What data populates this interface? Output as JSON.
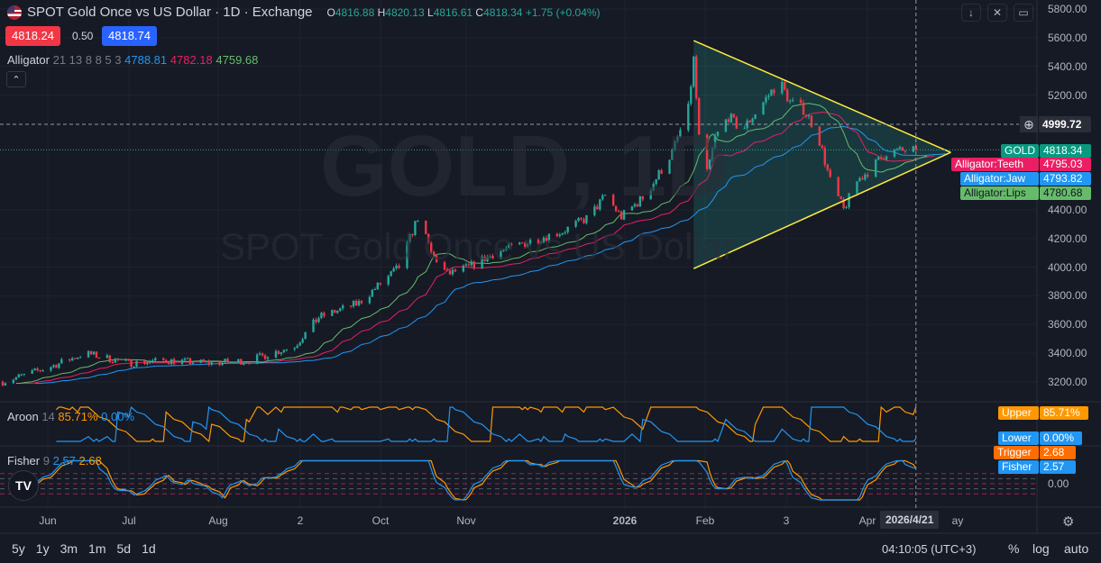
{
  "header": {
    "title": "SPOT Gold Once vs US Dollar · 1D · Exchange",
    "o_label": "O",
    "o": "4816.88",
    "h_label": "H",
    "h": "4820.13",
    "l_label": "L",
    "l": "4816.61",
    "c_label": "C",
    "c": "4818.34",
    "change": "+1.75 (+0.04%)"
  },
  "quote": {
    "bid": "4818.24",
    "spread": "0.50",
    "ask": "4818.74"
  },
  "alligator": {
    "name": "Alligator",
    "params": "21 13 8 8 5 3",
    "jaw": "4788.81",
    "teeth": "4782.18",
    "lips": "4759.68"
  },
  "aroon": {
    "name": "Aroon",
    "params": "14",
    "upper": "85.71%",
    "lower": "0.00%",
    "upper_label": "Upper",
    "lower_label": "Lower"
  },
  "fisher": {
    "name": "Fisher",
    "params": "9",
    "fisher": "2.57",
    "trigger": "2.68",
    "fisher_label": "Fisher",
    "trigger_label": "Trigger",
    "zero": "0.00"
  },
  "watermark": {
    "symbol": "GOLD, 1D",
    "desc": "SPOT Gold Once vs US Dollar"
  },
  "price_tags": {
    "crosshair": "4999.72",
    "gold_label": "GOLD",
    "gold": "4818.34",
    "teeth_label": "Alligator:Teeth",
    "teeth": "4795.03",
    "jaw_label": "Alligator:Jaw",
    "jaw": "4793.82",
    "lips_label": "Alligator:Lips",
    "lips": "4780.68"
  },
  "colors": {
    "up": "#26a69a",
    "down": "#f23645",
    "jaw": "#2196f3",
    "teeth": "#e91e63",
    "lips": "#66bb6a",
    "aroon_up": "#ff9800",
    "aroon_down": "#2196f3",
    "triangle": "#ffeb3b"
  },
  "time_axis": {
    "crosshair_date": "2026/4/21",
    "labels": [
      "Jun",
      "Jul",
      "Aug",
      "2",
      "Oct",
      "Nov",
      "2026",
      "Feb",
      "3",
      "Apr",
      "ay"
    ]
  },
  "bottom": {
    "ranges": [
      "5y",
      "1y",
      "3m",
      "1m",
      "5d",
      "1d"
    ],
    "clock": "04:10:05 (UTC+3)",
    "percent": "%",
    "log": "log",
    "auto": "auto"
  },
  "chart_data": {
    "type": "candlestick",
    "y_ticks": [
      "5800.00",
      "5600.00",
      "5400.00",
      "5200.00",
      "4400.00",
      "4200.00",
      "4000.00",
      "3800.00",
      "3600.00",
      "3400.00",
      "3200.00"
    ],
    "ylim": [
      3200,
      5800
    ],
    "close_keypoints": [
      [
        "2025-05-15",
        3200
      ],
      [
        "2025-06-01",
        3300
      ],
      [
        "2025-06-15",
        3400
      ],
      [
        "2025-07-01",
        3330
      ],
      [
        "2025-07-15",
        3350
      ],
      [
        "2025-08-01",
        3330
      ],
      [
        "2025-08-15",
        3350
      ],
      [
        "2025-09-01",
        3450
      ],
      [
        "2025-09-10",
        3650
      ],
      [
        "2025-09-25",
        3750
      ],
      [
        "2025-10-01",
        3850
      ],
      [
        "2025-10-10",
        4000
      ],
      [
        "2025-10-17",
        4350
      ],
      [
        "2025-10-22",
        4100
      ],
      [
        "2025-10-28",
        3950
      ],
      [
        "2025-11-05",
        4000
      ],
      [
        "2025-11-15",
        4100
      ],
      [
        "2025-12-01",
        4200
      ],
      [
        "2025-12-10",
        4250
      ],
      [
        "2025-12-20",
        4350
      ],
      [
        "2025-12-26",
        4500
      ],
      [
        "2026-01-01",
        4350
      ],
      [
        "2026-01-10",
        4500
      ],
      [
        "2026-01-20",
        4800
      ],
      [
        "2026-01-26",
        5100
      ],
      [
        "2026-01-28",
        5450
      ],
      [
        "2026-01-30",
        4900
      ],
      [
        "2026-02-02",
        4650
      ],
      [
        "2026-02-05",
        4900
      ],
      [
        "2026-02-10",
        5050
      ],
      [
        "2026-02-15",
        4950
      ],
      [
        "2026-02-25",
        5200
      ],
      [
        "2026-03-01",
        5300
      ],
      [
        "2026-03-05",
        5150
      ],
      [
        "2026-03-10",
        5100
      ],
      [
        "2026-03-15",
        4950
      ],
      [
        "2026-03-20",
        4600
      ],
      [
        "2026-03-25",
        4400
      ],
      [
        "2026-03-30",
        4600
      ],
      [
        "2026-04-05",
        4700
      ],
      [
        "2026-04-10",
        4800
      ],
      [
        "2026-04-21",
        4818.34
      ]
    ],
    "triangle": {
      "start": "2026-01-28",
      "apex": "2026-05-04",
      "upper_start": 5580,
      "lower_start": 3990,
      "apex_price": 4800
    }
  }
}
